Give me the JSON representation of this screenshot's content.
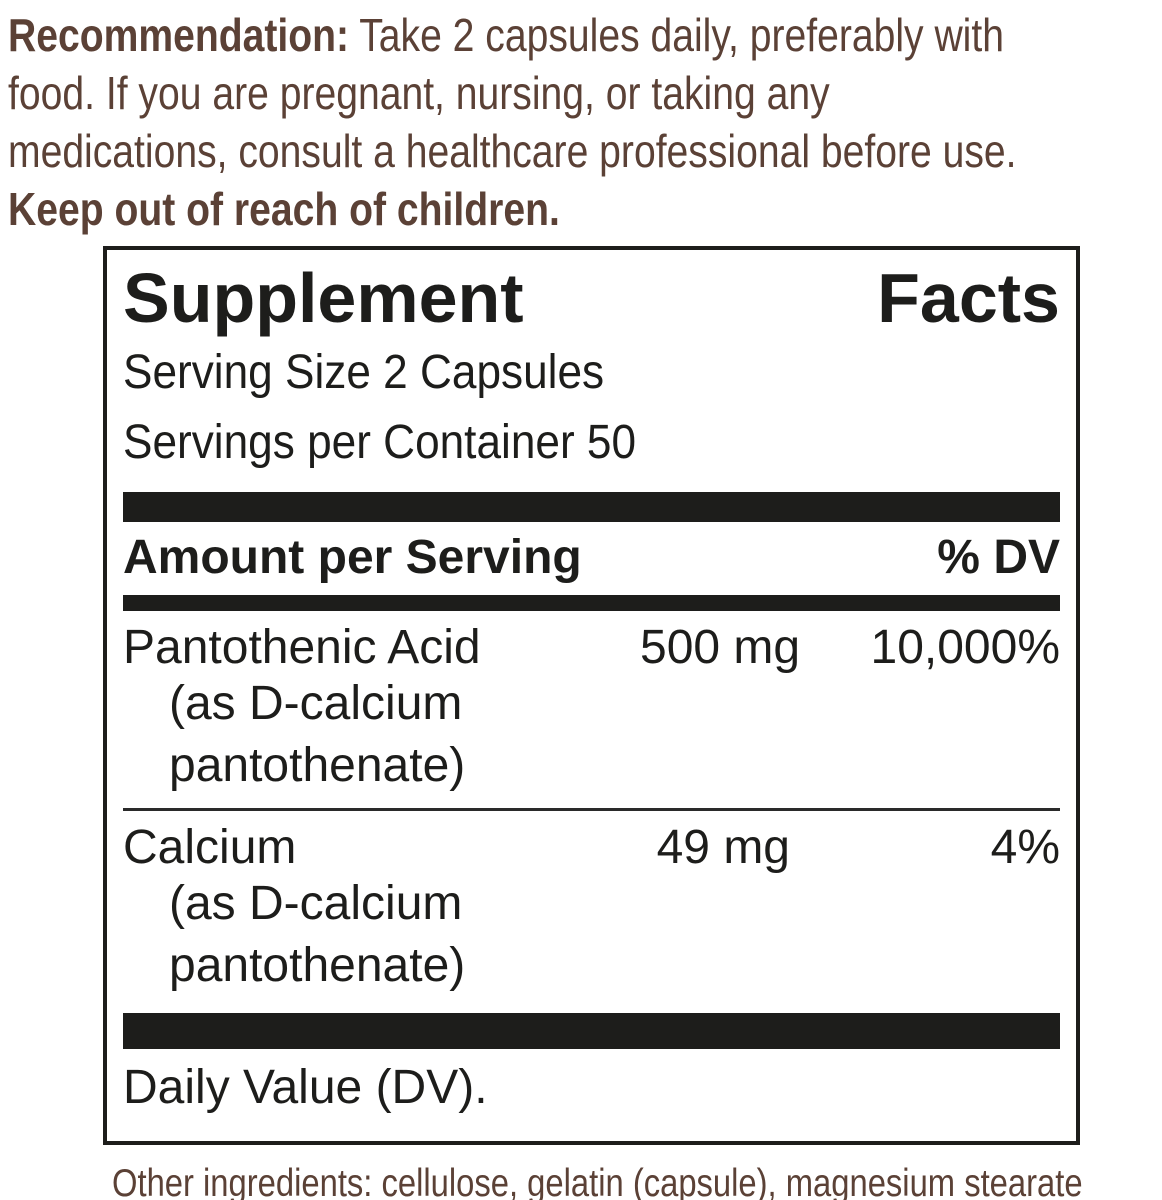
{
  "colors": {
    "brown_text": "#5b4136",
    "panel_black": "#1d1d1b",
    "background": "#ffffff"
  },
  "recommendation": {
    "bold_lead": "Recommendation:",
    "line1_rest": " Take 2 capsules daily, preferably with",
    "line2": "food. If you are pregnant, nursing, or taking any",
    "line3": "medications, consult a healthcare professional before use.",
    "line4_bold": "Keep out of reach of children."
  },
  "panel": {
    "title": "Supplement Facts",
    "serving_size": "Serving Size 2 Capsules",
    "servings_per_container": "Servings per Container 50",
    "header": {
      "amount_label": "Amount per Serving",
      "dv_label": "% DV"
    },
    "rows": [
      {
        "name": "Pantothenic Acid",
        "sub_line1": "(as D-calcium",
        "sub_line2": "pantothenate)",
        "amount": "500 mg",
        "dv": "10,000%"
      },
      {
        "name": "Calcium",
        "sub_line1": "(as D-calcium",
        "sub_line2": "pantothenate)",
        "amount": "49 mg",
        "dv": "4%"
      }
    ],
    "footnote": "Daily Value (DV)."
  },
  "other_ingredients": "Other ingredients: cellulose, gelatin (capsule), magnesium stearate"
}
